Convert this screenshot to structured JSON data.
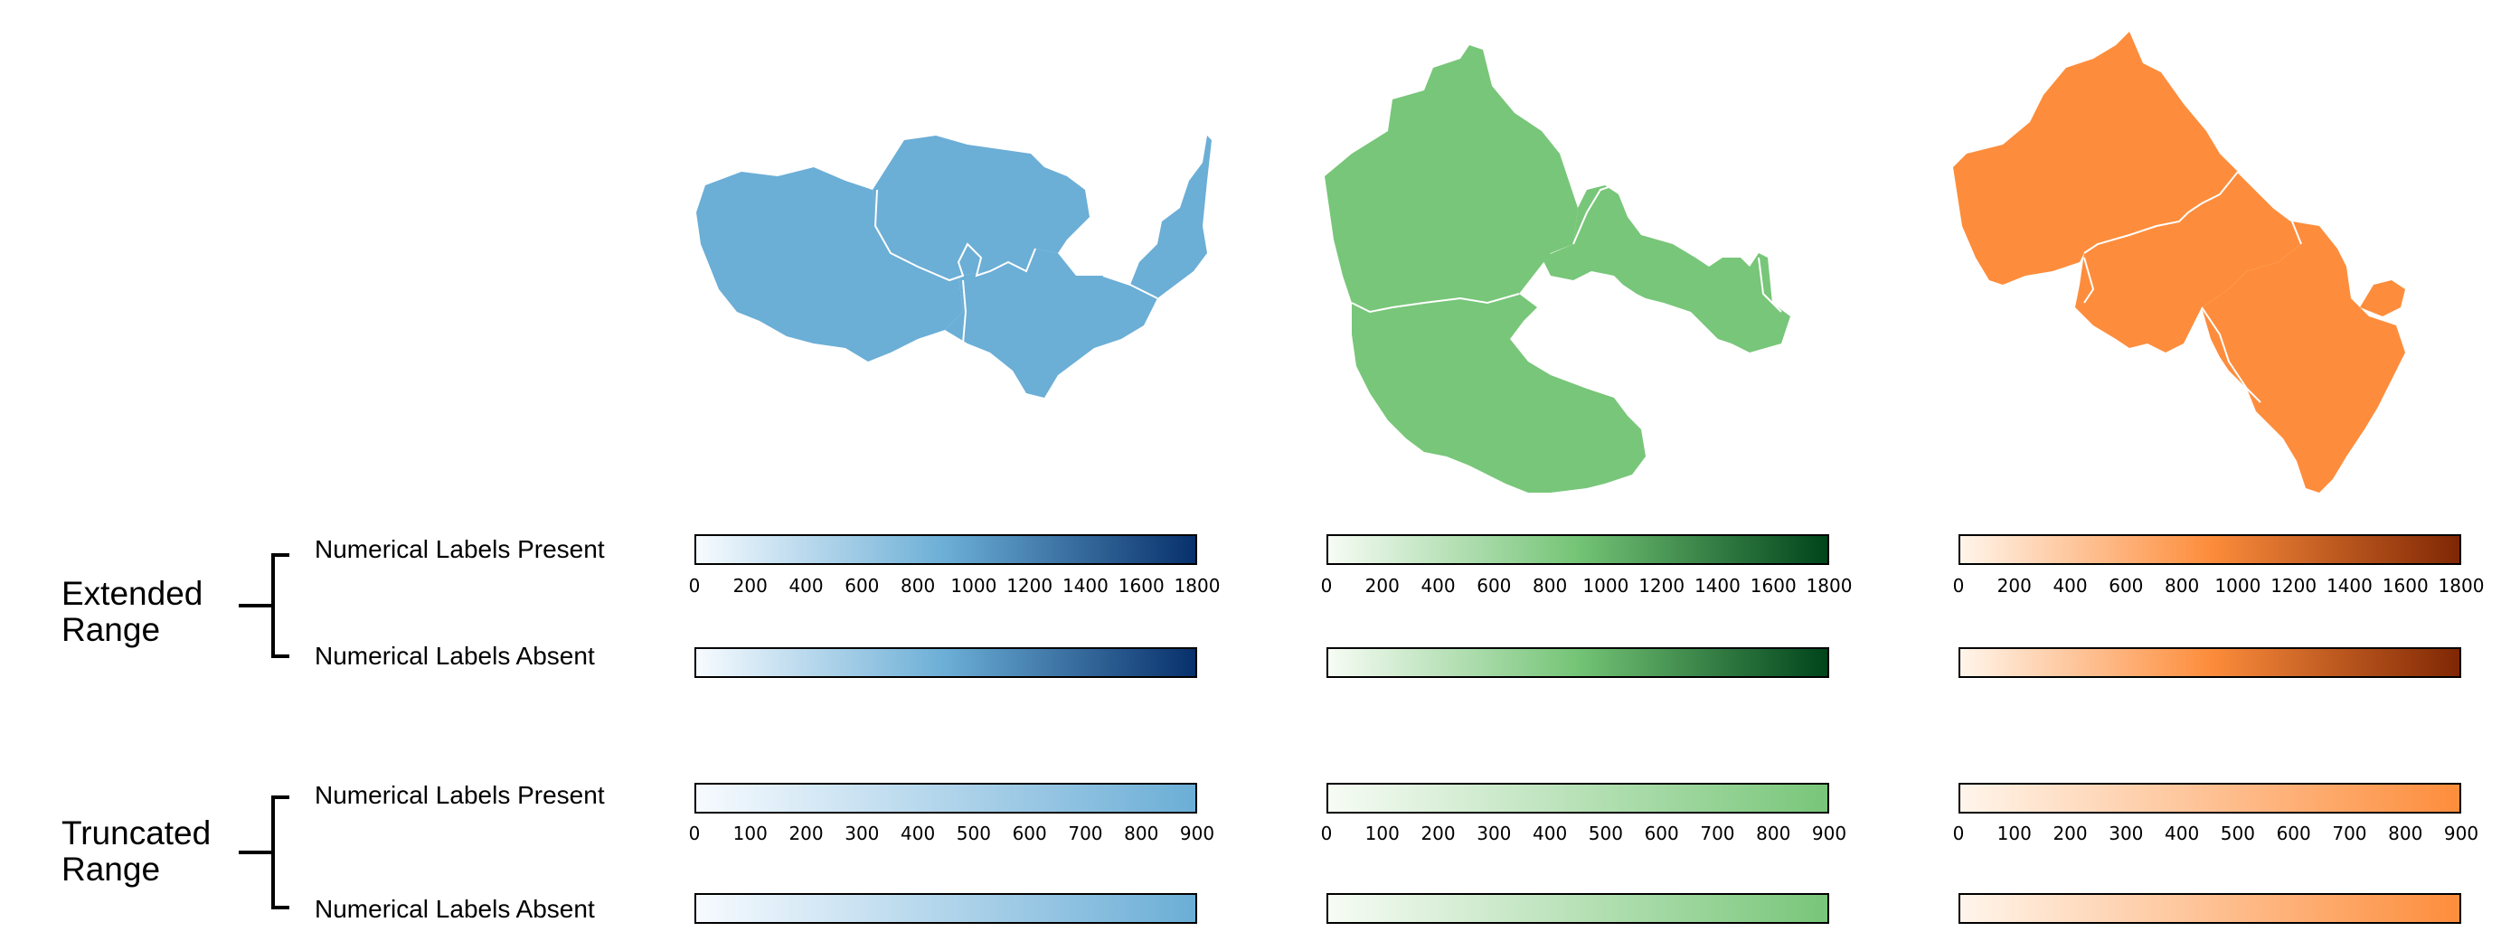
{
  "groups": [
    {
      "title": "Extended\nRange",
      "title_line1": "Extended",
      "title_line2": "Range"
    },
    {
      "title": "Truncated\nRange",
      "title_line1": "Truncated",
      "title_line2": "Range"
    }
  ],
  "row_labels": {
    "present": "Numerical Labels Present",
    "absent": "Numerical Labels Absent"
  },
  "palettes": [
    {
      "name": "blue",
      "region_color": "#6baed6",
      "extended_gradient": [
        "#f7fbff",
        "#6baed6",
        "#08306b"
      ],
      "truncated_gradient": [
        "#f7fbff",
        "#6baed6"
      ]
    },
    {
      "name": "green",
      "region_color": "#78c679",
      "extended_gradient": [
        "#f7fcf5",
        "#74c476",
        "#00441b"
      ],
      "truncated_gradient": [
        "#f7fcf5",
        "#78c679"
      ]
    },
    {
      "name": "orange",
      "region_color": "#fd8d3c",
      "extended_gradient": [
        "#fff5eb",
        "#fd8d3c",
        "#7f2704"
      ],
      "truncated_gradient": [
        "#fff5eb",
        "#fd8d3c"
      ]
    }
  ],
  "extended_ticks": [
    "0",
    "200",
    "400",
    "600",
    "800",
    "1000",
    "1200",
    "1400",
    "1600",
    "1800"
  ],
  "truncated_ticks": [
    "0",
    "100",
    "200",
    "300",
    "400",
    "500",
    "600",
    "700",
    "800",
    "900"
  ],
  "extended_range": [
    0,
    1800
  ],
  "truncated_range": [
    0,
    900
  ]
}
